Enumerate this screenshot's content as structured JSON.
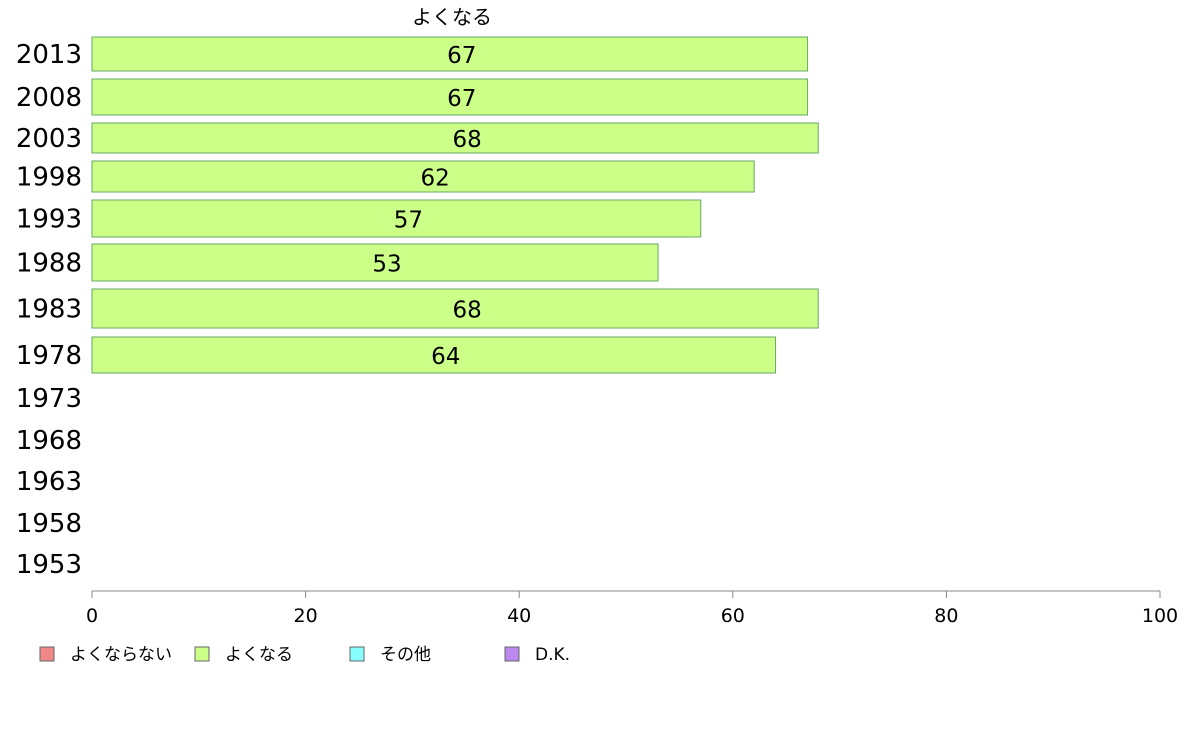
{
  "chart_data": {
    "type": "bar",
    "orientation": "horizontal",
    "series_title": "よくなる",
    "categories": [
      "2013",
      "2008",
      "2003",
      "1998",
      "1993",
      "1988",
      "1983",
      "1978",
      "1973",
      "1968",
      "1963",
      "1958",
      "1953"
    ],
    "series": [
      {
        "name": "よくなる",
        "values": [
          67,
          67,
          68,
          62,
          57,
          53,
          68,
          64,
          null,
          null,
          null,
          null,
          null
        ],
        "color": "#ccff88"
      }
    ],
    "data_labels": [
      "67",
      "67",
      "68",
      "62",
      "57",
      "53",
      "68",
      "64",
      "",
      "",
      "",
      "",
      ""
    ],
    "xlim": [
      0,
      100
    ],
    "xticks": [
      "0",
      "20",
      "40",
      "60",
      "80",
      "100"
    ],
    "xtick_values": [
      0,
      20,
      40,
      60,
      80,
      100
    ],
    "grid": false,
    "legend_position": "bottom-left",
    "legend": [
      {
        "label": "よくならない",
        "color": "#f08888"
      },
      {
        "label": "よくなる",
        "color": "#ccff88"
      },
      {
        "label": "その他",
        "color": "#88ffff"
      },
      {
        "label": "D.K.",
        "color": "#bb88ee"
      }
    ],
    "bar_stroke_color": "#66aa66",
    "axis_color": "#888888"
  }
}
